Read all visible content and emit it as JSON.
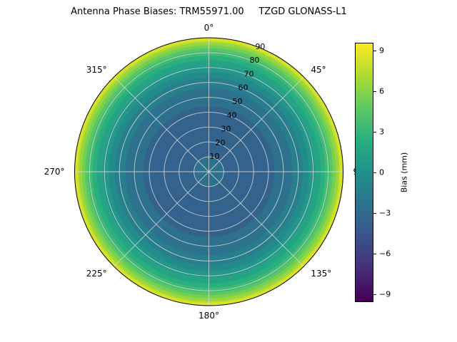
{
  "title": "Antenna Phase Biases: TRM55971.00     TZGD GLONASS-L1",
  "chart_data": {
    "type": "heatmap",
    "projection": "polar",
    "title": "Antenna Phase Biases: TRM55971.00     TZGD GLONASS-L1",
    "theta_zero": "top",
    "theta_direction": "clockwise",
    "grid": true,
    "angular_ticks": [
      {
        "angle_deg": 0,
        "label": "0°"
      },
      {
        "angle_deg": 45,
        "label": "45°"
      },
      {
        "angle_deg": 90,
        "label": "90"
      },
      {
        "angle_deg": 135,
        "label": "135°"
      },
      {
        "angle_deg": 180,
        "label": "180°"
      },
      {
        "angle_deg": 225,
        "label": "225°"
      },
      {
        "angle_deg": 270,
        "label": "270°"
      },
      {
        "angle_deg": 315,
        "label": "315°"
      }
    ],
    "radial_ticks": [
      10,
      20,
      30,
      40,
      50,
      60,
      70,
      80,
      90
    ],
    "radial_range": [
      0,
      90
    ],
    "radial_label_angle_deg": 22.5,
    "colorbar": {
      "label": "Bias (mm)",
      "ticks": [
        9,
        6,
        3,
        0,
        -3,
        -6,
        -9
      ],
      "vmin": -9.6,
      "vmax": 9.6
    },
    "contour_step": 1,
    "profile": {
      "zenith_deg": [
        0,
        10,
        20,
        30,
        40,
        50,
        60,
        70,
        80,
        90
      ],
      "bias_mm": [
        -2.6,
        -3.0,
        -3.2,
        -3.3,
        -3.2,
        -2.7,
        -1.6,
        0.6,
        3.6,
        8.8
      ]
    },
    "azimuthally_symmetric": true,
    "colormap": "viridis",
    "colormap_stops": [
      {
        "t": 0.0,
        "c": "#440154"
      },
      {
        "t": 0.125,
        "c": "#472d7b"
      },
      {
        "t": 0.25,
        "c": "#3b528b"
      },
      {
        "t": 0.375,
        "c": "#2c728e"
      },
      {
        "t": 0.5,
        "c": "#21918c"
      },
      {
        "t": 0.625,
        "c": "#28ae80"
      },
      {
        "t": 0.75,
        "c": "#5ec962"
      },
      {
        "t": 0.875,
        "c": "#addc30"
      },
      {
        "t": 1.0,
        "c": "#fde725"
      }
    ]
  }
}
